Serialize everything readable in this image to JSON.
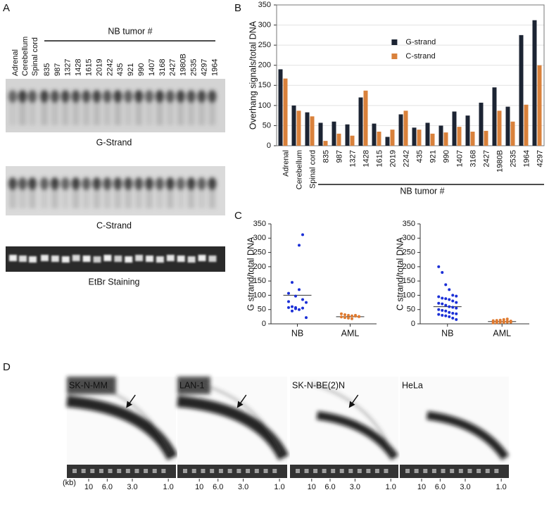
{
  "panel_labels": [
    "A",
    "B",
    "C",
    "D"
  ],
  "panel_a": {
    "group_label": "NB tumor #",
    "lanes": [
      "Adrenal",
      "Cerebellum",
      "Spinal cord",
      "835",
      "987",
      "1327",
      "1428",
      "1615",
      "2019",
      "2242",
      "435",
      "921",
      "990",
      "1407",
      "3168",
      "2427",
      "1980B",
      "2535",
      "4297",
      "1964"
    ],
    "blots": [
      "G-Strand",
      "C-Strand",
      "EtBr Staining"
    ]
  },
  "chart_data": [
    {
      "type": "bar",
      "ylabel": "Overhang signals/total DNA",
      "group_label": "NB tumor #",
      "categories": [
        "Adrenal",
        "Cerebellum",
        "Spinal cord",
        "835",
        "987",
        "1327",
        "1428",
        "1615",
        "2019",
        "2242",
        "435",
        "921",
        "990",
        "1407",
        "3168",
        "2427",
        "1980B",
        "2535",
        "1964",
        "4297"
      ],
      "series": [
        {
          "name": "G-strand",
          "color": "#1c2433",
          "values": [
            190,
            100,
            83,
            57,
            60,
            53,
            120,
            55,
            22,
            78,
            45,
            57,
            50,
            85,
            75,
            107,
            145,
            97,
            275,
            312
          ]
        },
        {
          "name": "C-strand",
          "color": "#d9813b",
          "values": [
            167,
            87,
            73,
            12,
            30,
            25,
            137,
            35,
            40,
            87,
            40,
            30,
            33,
            47,
            35,
            37,
            87,
            60,
            102,
            200
          ]
        }
      ],
      "ylim": [
        0,
        350
      ],
      "yticks": [
        0,
        50,
        100,
        150,
        200,
        250,
        300,
        350
      ],
      "grid": true,
      "legend": "upper center"
    },
    {
      "type": "strip",
      "ylabel": "G strand/total DNA",
      "categories": [
        "NB",
        "AML"
      ],
      "colors": [
        "#1b2fd6",
        "#e07b30"
      ],
      "values": [
        [
          57,
          60,
          53,
          120,
          55,
          22,
          78,
          45,
          57,
          50,
          85,
          75,
          107,
          145,
          97,
          275,
          312
        ],
        [
          35,
          32,
          30,
          28,
          27,
          25,
          24,
          22,
          20,
          18,
          30,
          26
        ]
      ],
      "center_lines": [
        100,
        25
      ],
      "ylim": [
        0,
        350
      ],
      "yticks": [
        0,
        50,
        100,
        150,
        200,
        250,
        300,
        350
      ]
    },
    {
      "type": "strip",
      "ylabel": "C strand/total DNA",
      "categories": [
        "NB",
        "AML"
      ],
      "colors": [
        "#1b2fd6",
        "#e07b30"
      ],
      "values": [
        [
          200,
          180,
          137,
          120,
          100,
          97,
          95,
          90,
          88,
          85,
          80,
          75,
          72,
          70,
          65,
          60,
          58,
          55,
          50,
          47,
          45,
          40,
          37,
          35,
          33,
          30,
          28,
          25,
          20,
          15
        ],
        [
          3,
          4,
          5,
          5,
          6,
          6,
          7,
          7,
          8,
          8,
          9,
          10,
          11,
          12,
          13,
          15,
          17
        ]
      ],
      "center_lines": [
        60,
        8
      ],
      "ylim": [
        0,
        350
      ],
      "yticks": [
        0,
        50,
        100,
        150,
        200,
        250,
        300,
        350
      ]
    }
  ],
  "panel_d": {
    "gels": [
      "SK-N-MM",
      "LAN-1",
      "SK-N-BE(2)N",
      "HeLa"
    ],
    "kb_unit": "(kb)",
    "kb_labels": [
      "10",
      "6.0",
      "3.0",
      "1.0"
    ]
  }
}
